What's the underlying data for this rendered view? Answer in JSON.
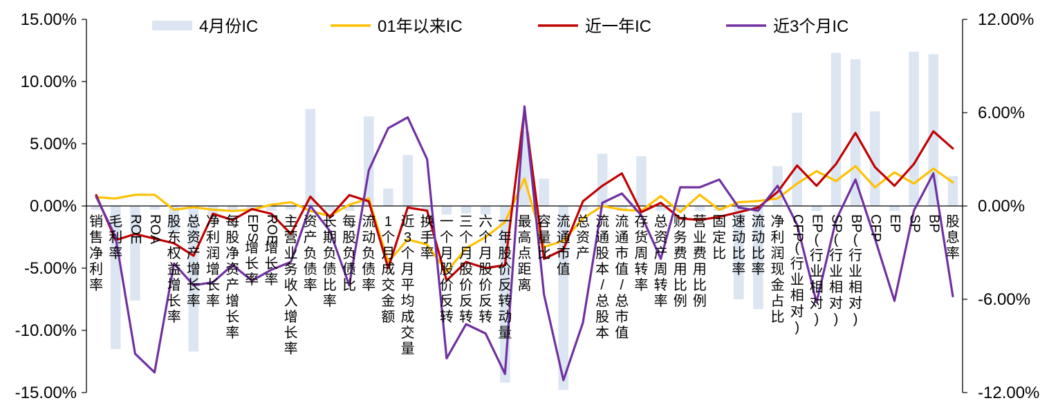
{
  "chart_data": {
    "type": "bar+line",
    "title": "",
    "categories": [
      "销售净利率",
      "毛利率",
      "ROE",
      "ROA",
      "股东权益增长率",
      "总资产增长率",
      "净利润增长率",
      "每股净资产增长率",
      "EPS增长率",
      "ROE增长率",
      "主营业务收入增长率",
      "资产负债率",
      "长期负债比率",
      "每股负债比",
      "流动负债率",
      "1个月成交金额",
      "近3个月平均成交量",
      "换手率",
      "一个月股价反转",
      "三个月股价反转",
      "六个月股价反转",
      "一年股价反转动量",
      "最高点距离",
      "容量比",
      "流通市值",
      "总资产",
      "流通股本/总股本",
      "流通市值/总市值",
      "存货周转率",
      "总资产周转率",
      "财务费用比例",
      "营业费用比例",
      "固定比",
      "速动比率",
      "流动比率",
      "净利润现金占比",
      "CFP(行业相对)",
      "EP(行业相对)",
      "SP(行业相对)",
      "BP(行业相对)",
      "CFP",
      "EP",
      "SP",
      "BP",
      "股息率"
    ],
    "left_axis": {
      "min": -0.15,
      "max": 0.15,
      "ticks": [
        "15.00%",
        "10.00%",
        "5.00%",
        "0.00%",
        "-5.00%",
        "-10.00%",
        "-15.00%"
      ]
    },
    "right_axis": {
      "min": -0.12,
      "max": 0.12,
      "ticks": [
        "12.00%",
        "6.00%",
        "0.00%",
        "-6.00%",
        "-12.00%"
      ]
    },
    "series": [
      {
        "name": "4月份IC",
        "kind": "bar",
        "axis": "left",
        "color": "#dce6f2",
        "values": [
          -0.003,
          -0.115,
          -0.076,
          -0.003,
          -0.022,
          -0.117,
          -0.008,
          -0.004,
          -0.004,
          -0.004,
          -0.003,
          0.078,
          -0.004,
          -0.004,
          0.072,
          0.014,
          0.041,
          -0.004,
          -0.007,
          -0.006,
          -0.007,
          -0.142,
          0.06,
          0.022,
          -0.148,
          -0.004,
          0.042,
          -0.004,
          0.04,
          -0.004,
          -0.004,
          -0.004,
          -0.004,
          -0.075,
          -0.083,
          0.032,
          0.075,
          -0.004,
          0.123,
          0.118,
          0.076,
          -0.004,
          0.124,
          0.122,
          0.024
        ]
      },
      {
        "name": "01年以来IC",
        "kind": "line",
        "axis": "left",
        "color": "#ffc000",
        "values": [
          0.007,
          0.006,
          0.009,
          0.009,
          -0.003,
          -0.001,
          -0.003,
          -0.004,
          -0.003,
          0.001,
          0.003,
          -0.004,
          -0.008,
          0.001,
          0.006,
          -0.045,
          -0.027,
          -0.031,
          -0.053,
          -0.034,
          -0.025,
          -0.013,
          0.022,
          -0.033,
          -0.028,
          -0.01,
          0,
          -0.003,
          -0.004,
          0.008,
          -0.005,
          0.009,
          -0.003,
          0.003,
          0.004,
          0.006,
          0.018,
          0.028,
          0.02,
          0.032,
          0.015,
          0.027,
          0.018,
          0.03,
          0.019
        ]
      },
      {
        "name": "近一年IC",
        "kind": "line",
        "axis": "right",
        "color": "#c00000",
        "values": [
          0.007,
          -0.022,
          -0.018,
          -0.021,
          -0.024,
          -0.032,
          -0.005,
          -0.009,
          -0.002,
          -0.005,
          -0.018,
          0.006,
          -0.007,
          0.007,
          0.003,
          -0.04,
          -0.001,
          -0.003,
          -0.048,
          -0.036,
          -0.04,
          -0.038,
          0.062,
          -0.034,
          -0.028,
          0.003,
          0.013,
          0.021,
          -0.004,
          0.002,
          -0.008,
          -0.009,
          -0.007,
          -0.004,
          -0.001,
          0.009,
          0.026,
          0.013,
          0.027,
          0.047,
          0.025,
          0.013,
          0.027,
          0.048,
          0.037
        ]
      },
      {
        "name": "近3个月IC",
        "kind": "line",
        "axis": "right",
        "color": "#7030a0",
        "values": [
          0.006,
          -0.02,
          -0.095,
          -0.107,
          -0.037,
          -0.051,
          -0.049,
          -0.038,
          -0.048,
          -0.041,
          -0.036,
          0,
          -0.016,
          -0.051,
          0.023,
          0.05,
          0.057,
          0.03,
          -0.098,
          -0.076,
          -0.082,
          -0.108,
          0.064,
          -0.057,
          -0.112,
          -0.075,
          0.002,
          0.008,
          -0.006,
          -0.034,
          0.012,
          0.012,
          0.017,
          -0.001,
          -0.003,
          0.013,
          -0.012,
          -0.062,
          -0.009,
          0.017,
          -0.021,
          -0.061,
          -0.003,
          0.021,
          -0.058
        ]
      }
    ]
  }
}
